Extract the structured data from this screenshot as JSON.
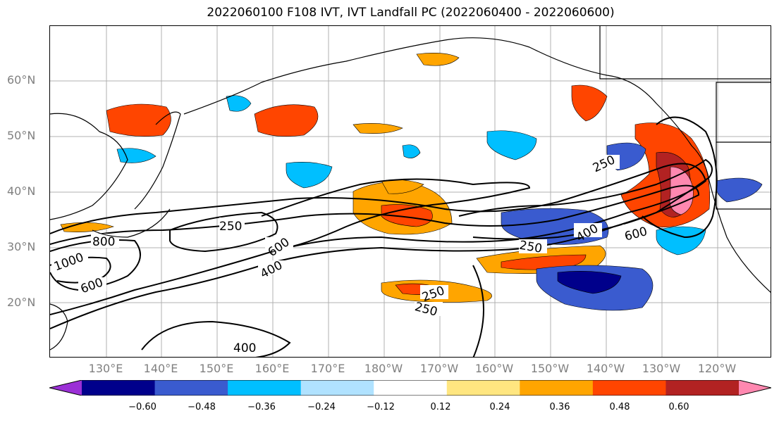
{
  "title": "2022060100 F108 IVT, IVT Landfall PC (2022060400 - 2022060600)",
  "lat_labels": [
    "60°N",
    "50°N",
    "40°N",
    "30°N",
    "20°N"
  ],
  "lon_labels": [
    "130°E",
    "140°E",
    "150°E",
    "160°E",
    "170°E",
    "180°W",
    "170°W",
    "160°W",
    "150°W",
    "140°W",
    "130°W",
    "120°W"
  ],
  "contour_labels": [
    "250",
    "800",
    "1000",
    "600",
    "600",
    "400",
    "250",
    "250",
    "400",
    "250",
    "400",
    "600",
    "250"
  ],
  "colorbar": {
    "ticks": [
      "−0.60",
      "−0.48",
      "−0.36",
      "−0.24",
      "−0.12",
      "0.12",
      "0.24",
      "0.36",
      "0.48",
      "0.60"
    ],
    "colors": [
      "#9b30d6",
      "#00008b",
      "#3a5bcf",
      "#00bfff",
      "#b0e2ff",
      "#ffffff",
      "#ffe680",
      "#ffa500",
      "#ff4500",
      "#b22222",
      "#ff88b0"
    ],
    "extend": "both"
  },
  "map": {
    "projection": "PlateCarree",
    "lon_range": [
      "120°E",
      "110°W"
    ],
    "lat_range": [
      "10°N",
      "70°N"
    ],
    "gridlines": true,
    "fill_field": "IVT Landfall PC",
    "contour_field": "IVT",
    "contour_levels": [
      250,
      400,
      600,
      800,
      1000
    ]
  }
}
